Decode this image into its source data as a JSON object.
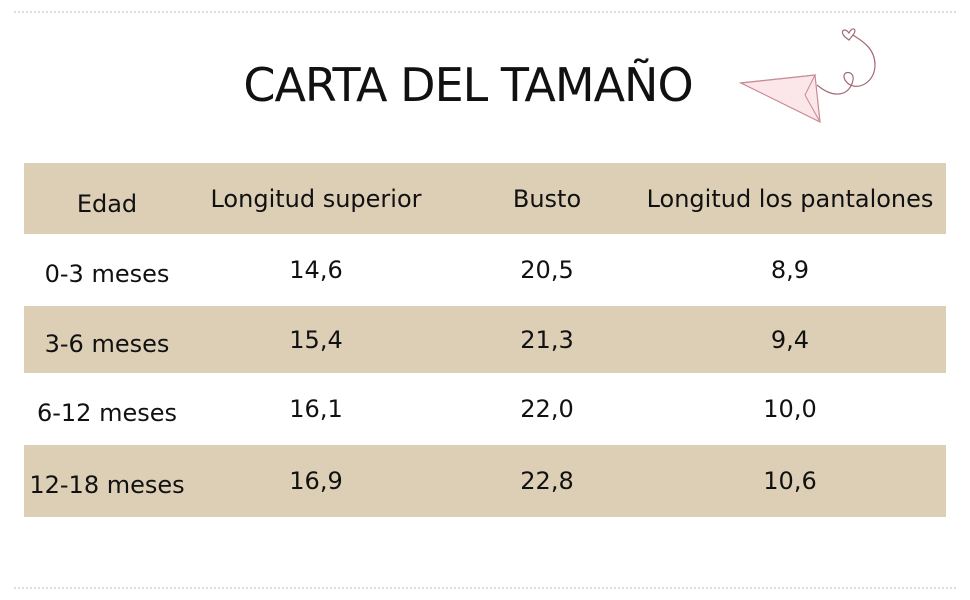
{
  "header": {
    "title": "CARTA DEL TAMAÑO"
  },
  "table": {
    "columns": [
      "Edad",
      "Longitud superior",
      "Busto",
      "Longitud los pantalones"
    ],
    "rows": [
      [
        "0-3 meses",
        "14,6",
        "20,5",
        "8,9"
      ],
      [
        "3-6 meses",
        "15,4",
        "21,3",
        "9,4"
      ],
      [
        "6-12 meses",
        "16,1",
        "22,0",
        "10,0"
      ],
      [
        "12-18 meses",
        "16,9",
        "22,8",
        "10,6"
      ]
    ]
  }
}
